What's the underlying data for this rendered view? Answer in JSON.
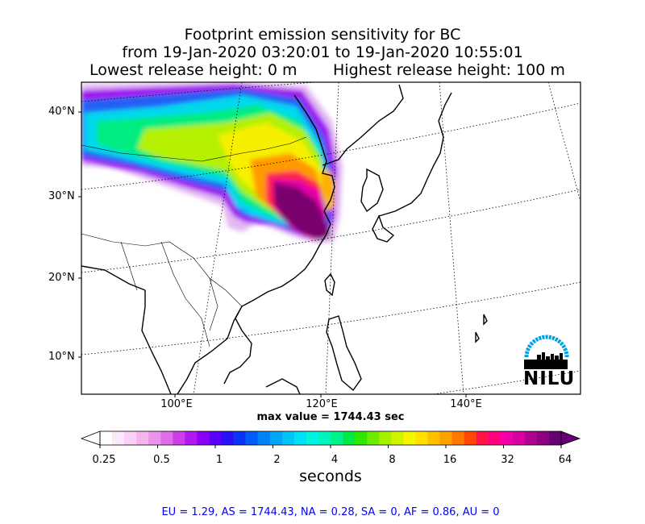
{
  "title": {
    "line1": "Footprint emission sensitivity for BC",
    "line2": "from 19-Jan-2020 03:20:01 to 19-Jan-2020 10:55:01",
    "line3_left": "Lowest release height: 0 m",
    "line3_right": "Highest release height: 100 m"
  },
  "map": {
    "lat_labels": [
      "40°N",
      "30°N",
      "20°N",
      "10°N"
    ],
    "lon_labels": [
      "100°E",
      "120°E",
      "140°E"
    ],
    "max_value_text": "max value = 1744.43 sec"
  },
  "colorbar": {
    "tick_labels": [
      "0.25",
      "0.5",
      "1",
      "2",
      "4",
      "8",
      "16",
      "32",
      "64"
    ],
    "units": "seconds",
    "colors": [
      "#ffffff",
      "#fde8fb",
      "#f9d0f6",
      "#f3b4f0",
      "#ec94ea",
      "#e06ee6",
      "#cc3fe8",
      "#b01af0",
      "#8a00f4",
      "#5a00f6",
      "#2a10f6",
      "#0a33f4",
      "#005cf6",
      "#0082f6",
      "#00a4f8",
      "#00c4f8",
      "#00e0f4",
      "#00f4e0",
      "#00f6b8",
      "#00f28a",
      "#00e84a",
      "#2ee800",
      "#6cec00",
      "#a4f000",
      "#d0f400",
      "#f6f600",
      "#ffe000",
      "#ffc000",
      "#ffa000",
      "#ff7800",
      "#ff4800",
      "#ff1448",
      "#ff0080",
      "#f000a8",
      "#d800a0",
      "#b00090",
      "#8c0080",
      "#660070"
    ]
  },
  "regions_text": "EU = 1.29,  AS = 1744.43,  NA = 0.28,  SA = 0,  AF = 0.86,  AU = 0",
  "logo": {
    "text": "NILU",
    "color": "#00a0e3"
  }
}
